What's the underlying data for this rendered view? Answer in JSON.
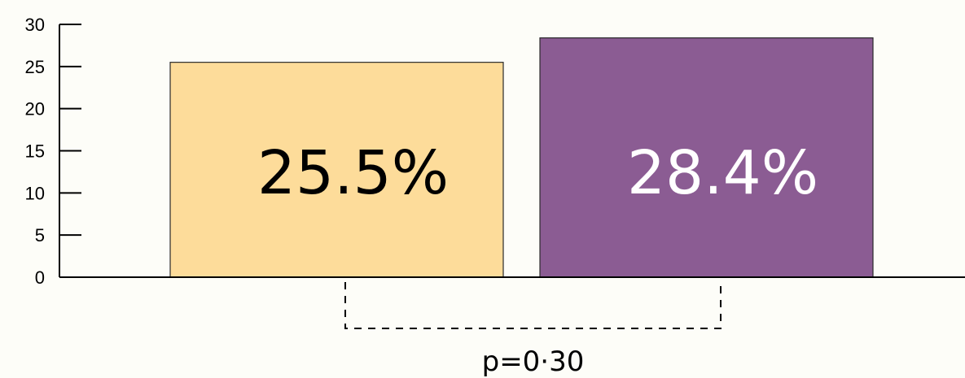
{
  "chart_data": {
    "type": "bar",
    "categories": [
      "",
      ""
    ],
    "values": [
      25.5,
      28.4
    ],
    "value_labels": [
      "25.5%",
      "28.4%"
    ],
    "colors": [
      "#fddc9a",
      "#8b5c93"
    ],
    "label_colors": [
      "#000000",
      "#ffffff"
    ],
    "ylim": [
      0,
      30
    ],
    "yticks": [
      0,
      5,
      10,
      15,
      20,
      25,
      30
    ],
    "ytick_labels": [
      "0",
      "5",
      "10",
      "15",
      "20",
      "25",
      "30"
    ],
    "title": "",
    "xlabel": "",
    "ylabel": "",
    "grid": false,
    "legend": "none",
    "annotation": {
      "type": "significance-bracket",
      "between": [
        0,
        1
      ],
      "text": "p=0·30"
    }
  }
}
